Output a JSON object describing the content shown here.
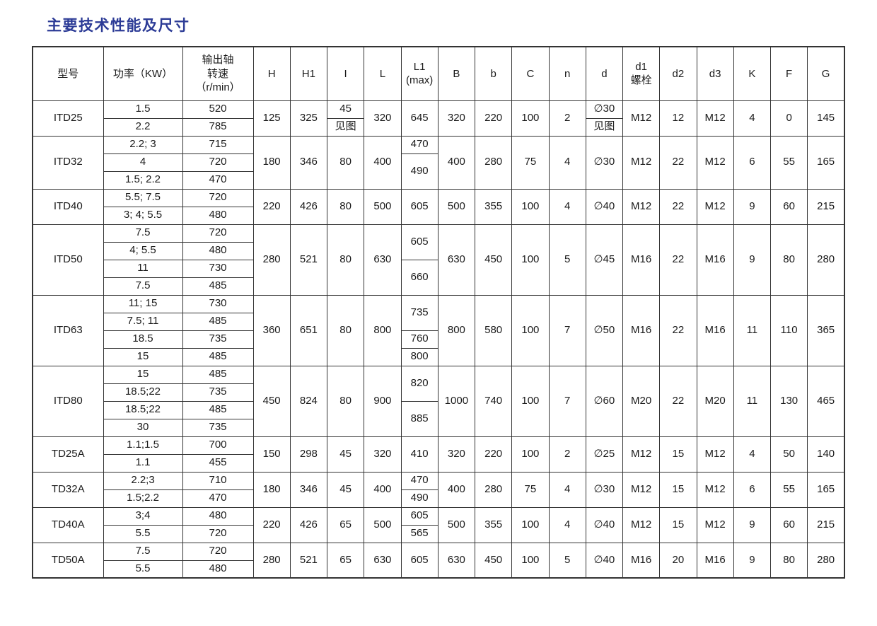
{
  "page": {
    "title": "主要技术性能及尺寸",
    "title_color": "#2c3b96",
    "border_color": "#333333",
    "background_color": "#ffffff"
  },
  "table": {
    "header": [
      "型号",
      "功率（KW）",
      "输出轴\n转速\n（r/min）",
      "H",
      "H1",
      "I",
      "L",
      "L1\n(max)",
      "B",
      "b",
      "C",
      "n",
      "d",
      "d1\n螺栓",
      "d2",
      "d3",
      "K",
      "F",
      "G"
    ],
    "rows": [
      [
        {
          "t": "ITD25",
          "rs": 2
        },
        {
          "t": "1.5"
        },
        {
          "t": "520"
        },
        {
          "t": "125",
          "rs": 2
        },
        {
          "t": "325",
          "rs": 2
        },
        {
          "t": "45"
        },
        {
          "t": "320",
          "rs": 2
        },
        {
          "t": "645",
          "rs": 2
        },
        {
          "t": "320",
          "rs": 2
        },
        {
          "t": "220",
          "rs": 2
        },
        {
          "t": "100",
          "rs": 2
        },
        {
          "t": "2",
          "rs": 2
        },
        {
          "t": "∅30"
        },
        {
          "t": "M12",
          "rs": 2
        },
        {
          "t": "12",
          "rs": 2
        },
        {
          "t": "M12",
          "rs": 2
        },
        {
          "t": "4",
          "rs": 2
        },
        {
          "t": "0",
          "rs": 2
        },
        {
          "t": "145",
          "rs": 2
        }
      ],
      [
        {
          "t": "2.2"
        },
        {
          "t": "785"
        },
        {
          "t": "见图"
        },
        {
          "t": "见图"
        }
      ],
      [
        {
          "t": "ITD32",
          "rs": 3
        },
        {
          "t": "2.2; 3"
        },
        {
          "t": "715"
        },
        {
          "t": "180",
          "rs": 3
        },
        {
          "t": "346",
          "rs": 3
        },
        {
          "t": "80",
          "rs": 3
        },
        {
          "t": "400",
          "rs": 3
        },
        {
          "t": "470"
        },
        {
          "t": "400",
          "rs": 3
        },
        {
          "t": "280",
          "rs": 3
        },
        {
          "t": "75",
          "rs": 3
        },
        {
          "t": "4",
          "rs": 3
        },
        {
          "t": "∅30",
          "rs": 3
        },
        {
          "t": "M12",
          "rs": 3
        },
        {
          "t": "22",
          "rs": 3
        },
        {
          "t": "M12",
          "rs": 3
        },
        {
          "t": "6",
          "rs": 3
        },
        {
          "t": "55",
          "rs": 3
        },
        {
          "t": "165",
          "rs": 3
        }
      ],
      [
        {
          "t": "4"
        },
        {
          "t": "720"
        },
        {
          "t": "490",
          "rs": 2
        }
      ],
      [
        {
          "t": "1.5; 2.2"
        },
        {
          "t": "470"
        }
      ],
      [
        {
          "t": "ITD40",
          "rs": 2
        },
        {
          "t": "5.5; 7.5"
        },
        {
          "t": "720"
        },
        {
          "t": "220",
          "rs": 2
        },
        {
          "t": "426",
          "rs": 2
        },
        {
          "t": "80",
          "rs": 2
        },
        {
          "t": "500",
          "rs": 2
        },
        {
          "t": "605",
          "rs": 2
        },
        {
          "t": "500",
          "rs": 2
        },
        {
          "t": "355",
          "rs": 2
        },
        {
          "t": "100",
          "rs": 2
        },
        {
          "t": "4",
          "rs": 2
        },
        {
          "t": "∅40",
          "rs": 2
        },
        {
          "t": "M12",
          "rs": 2
        },
        {
          "t": "22",
          "rs": 2
        },
        {
          "t": "M12",
          "rs": 2
        },
        {
          "t": "9",
          "rs": 2
        },
        {
          "t": "60",
          "rs": 2
        },
        {
          "t": "215",
          "rs": 2
        }
      ],
      [
        {
          "t": "3; 4; 5.5"
        },
        {
          "t": "480"
        }
      ],
      [
        {
          "t": "ITD50",
          "rs": 4
        },
        {
          "t": "7.5"
        },
        {
          "t": "720"
        },
        {
          "t": "280",
          "rs": 4
        },
        {
          "t": "521",
          "rs": 4
        },
        {
          "t": "80",
          "rs": 4
        },
        {
          "t": "630",
          "rs": 4
        },
        {
          "t": "605",
          "rs": 2
        },
        {
          "t": "630",
          "rs": 4
        },
        {
          "t": "450",
          "rs": 4
        },
        {
          "t": "100",
          "rs": 4
        },
        {
          "t": "5",
          "rs": 4
        },
        {
          "t": "∅45",
          "rs": 4
        },
        {
          "t": "M16",
          "rs": 4
        },
        {
          "t": "22",
          "rs": 4
        },
        {
          "t": "M16",
          "rs": 4
        },
        {
          "t": "9",
          "rs": 4
        },
        {
          "t": "80",
          "rs": 4
        },
        {
          "t": "280",
          "rs": 4
        }
      ],
      [
        {
          "t": "4; 5.5"
        },
        {
          "t": "480"
        }
      ],
      [
        {
          "t": "11"
        },
        {
          "t": "730"
        },
        {
          "t": "660",
          "rs": 2
        }
      ],
      [
        {
          "t": "7.5"
        },
        {
          "t": "485"
        }
      ],
      [
        {
          "t": "ITD63",
          "rs": 4
        },
        {
          "t": "11; 15"
        },
        {
          "t": "730"
        },
        {
          "t": "360",
          "rs": 4
        },
        {
          "t": "651",
          "rs": 4
        },
        {
          "t": "80",
          "rs": 4
        },
        {
          "t": "800",
          "rs": 4
        },
        {
          "t": "735",
          "rs": 2
        },
        {
          "t": "800",
          "rs": 4
        },
        {
          "t": "580",
          "rs": 4
        },
        {
          "t": "100",
          "rs": 4
        },
        {
          "t": "7",
          "rs": 4
        },
        {
          "t": "∅50",
          "rs": 4
        },
        {
          "t": "M16",
          "rs": 4
        },
        {
          "t": "22",
          "rs": 4
        },
        {
          "t": "M16",
          "rs": 4
        },
        {
          "t": "11",
          "rs": 4
        },
        {
          "t": "110",
          "rs": 4
        },
        {
          "t": "365",
          "rs": 4
        }
      ],
      [
        {
          "t": "7.5; 11"
        },
        {
          "t": "485"
        }
      ],
      [
        {
          "t": "18.5"
        },
        {
          "t": "735"
        },
        {
          "t": "760"
        }
      ],
      [
        {
          "t": "15"
        },
        {
          "t": "485"
        },
        {
          "t": "800"
        }
      ],
      [
        {
          "t": "ITD80",
          "rs": 4
        },
        {
          "t": "15"
        },
        {
          "t": "485"
        },
        {
          "t": "450",
          "rs": 4
        },
        {
          "t": "824",
          "rs": 4
        },
        {
          "t": "80",
          "rs": 4
        },
        {
          "t": "900",
          "rs": 4
        },
        {
          "t": "820",
          "rs": 2
        },
        {
          "t": "1000",
          "rs": 4
        },
        {
          "t": "740",
          "rs": 4
        },
        {
          "t": "100",
          "rs": 4
        },
        {
          "t": "7",
          "rs": 4
        },
        {
          "t": "∅60",
          "rs": 4
        },
        {
          "t": "M20",
          "rs": 4
        },
        {
          "t": "22",
          "rs": 4
        },
        {
          "t": "M20",
          "rs": 4
        },
        {
          "t": "11",
          "rs": 4
        },
        {
          "t": "130",
          "rs": 4
        },
        {
          "t": "465",
          "rs": 4
        }
      ],
      [
        {
          "t": "18.5;22"
        },
        {
          "t": "735"
        }
      ],
      [
        {
          "t": "18.5;22"
        },
        {
          "t": "485"
        },
        {
          "t": "885",
          "rs": 2
        }
      ],
      [
        {
          "t": "30"
        },
        {
          "t": "735"
        }
      ],
      [
        {
          "t": "TD25A",
          "rs": 2
        },
        {
          "t": "1.1;1.5"
        },
        {
          "t": "700"
        },
        {
          "t": "150",
          "rs": 2
        },
        {
          "t": "298",
          "rs": 2
        },
        {
          "t": "45",
          "rs": 2
        },
        {
          "t": "320",
          "rs": 2
        },
        {
          "t": "410",
          "rs": 2
        },
        {
          "t": "320",
          "rs": 2
        },
        {
          "t": "220",
          "rs": 2
        },
        {
          "t": "100",
          "rs": 2
        },
        {
          "t": "2",
          "rs": 2
        },
        {
          "t": "∅25",
          "rs": 2
        },
        {
          "t": "M12",
          "rs": 2
        },
        {
          "t": "15",
          "rs": 2
        },
        {
          "t": "M12",
          "rs": 2
        },
        {
          "t": "4",
          "rs": 2
        },
        {
          "t": "50",
          "rs": 2
        },
        {
          "t": "140",
          "rs": 2
        }
      ],
      [
        {
          "t": "1.1"
        },
        {
          "t": "455"
        }
      ],
      [
        {
          "t": "TD32A",
          "rs": 2
        },
        {
          "t": "2.2;3"
        },
        {
          "t": "710"
        },
        {
          "t": "180",
          "rs": 2
        },
        {
          "t": "346",
          "rs": 2
        },
        {
          "t": "45",
          "rs": 2
        },
        {
          "t": "400",
          "rs": 2
        },
        {
          "t": "470"
        },
        {
          "t": "400",
          "rs": 2
        },
        {
          "t": "280",
          "rs": 2
        },
        {
          "t": "75",
          "rs": 2
        },
        {
          "t": "4",
          "rs": 2
        },
        {
          "t": "∅30",
          "rs": 2
        },
        {
          "t": "M12",
          "rs": 2
        },
        {
          "t": "15",
          "rs": 2
        },
        {
          "t": "M12",
          "rs": 2
        },
        {
          "t": "6",
          "rs": 2
        },
        {
          "t": "55",
          "rs": 2
        },
        {
          "t": "165",
          "rs": 2
        }
      ],
      [
        {
          "t": "1.5;2.2"
        },
        {
          "t": "470"
        },
        {
          "t": "490"
        }
      ],
      [
        {
          "t": "TD40A",
          "rs": 2
        },
        {
          "t": "3;4"
        },
        {
          "t": "480"
        },
        {
          "t": "220",
          "rs": 2
        },
        {
          "t": "426",
          "rs": 2
        },
        {
          "t": "65",
          "rs": 2
        },
        {
          "t": "500",
          "rs": 2
        },
        {
          "t": "605"
        },
        {
          "t": "500",
          "rs": 2
        },
        {
          "t": "355",
          "rs": 2
        },
        {
          "t": "100",
          "rs": 2
        },
        {
          "t": "4",
          "rs": 2
        },
        {
          "t": "∅40",
          "rs": 2
        },
        {
          "t": "M12",
          "rs": 2
        },
        {
          "t": "15",
          "rs": 2
        },
        {
          "t": "M12",
          "rs": 2
        },
        {
          "t": "9",
          "rs": 2
        },
        {
          "t": "60",
          "rs": 2
        },
        {
          "t": "215",
          "rs": 2
        }
      ],
      [
        {
          "t": "5.5"
        },
        {
          "t": "720"
        },
        {
          "t": "565"
        }
      ],
      [
        {
          "t": "TD50A",
          "rs": 2
        },
        {
          "t": "7.5"
        },
        {
          "t": "720"
        },
        {
          "t": "280",
          "rs": 2
        },
        {
          "t": "521",
          "rs": 2
        },
        {
          "t": "65",
          "rs": 2
        },
        {
          "t": "630",
          "rs": 2
        },
        {
          "t": "605",
          "rs": 2
        },
        {
          "t": "630",
          "rs": 2
        },
        {
          "t": "450",
          "rs": 2
        },
        {
          "t": "100",
          "rs": 2
        },
        {
          "t": "5",
          "rs": 2
        },
        {
          "t": "∅40",
          "rs": 2
        },
        {
          "t": "M16",
          "rs": 2
        },
        {
          "t": "20",
          "rs": 2
        },
        {
          "t": "M16",
          "rs": 2
        },
        {
          "t": "9",
          "rs": 2
        },
        {
          "t": "80",
          "rs": 2
        },
        {
          "t": "280",
          "rs": 2
        }
      ],
      [
        {
          "t": "5.5"
        },
        {
          "t": "480"
        }
      ]
    ]
  }
}
